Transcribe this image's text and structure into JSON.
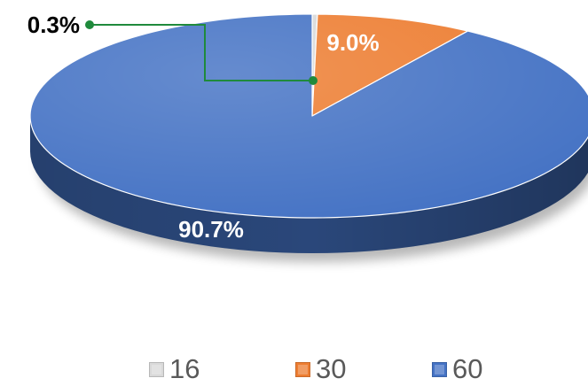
{
  "chart_data": {
    "type": "pie",
    "categories": [
      "16",
      "30",
      "60"
    ],
    "values": [
      0.3,
      9.0,
      90.7
    ],
    "data_labels": [
      "0.3%",
      "9.0%",
      "90.7%"
    ],
    "colors": [
      "#d9d9d9",
      "#ed7d31",
      "#4472c4"
    ],
    "label_colors": [
      "#000000",
      "#ffffff",
      "#ffffff"
    ],
    "leader_color": "#1f8a3c",
    "legend_position": "bottom",
    "style": "3d-tilted"
  }
}
